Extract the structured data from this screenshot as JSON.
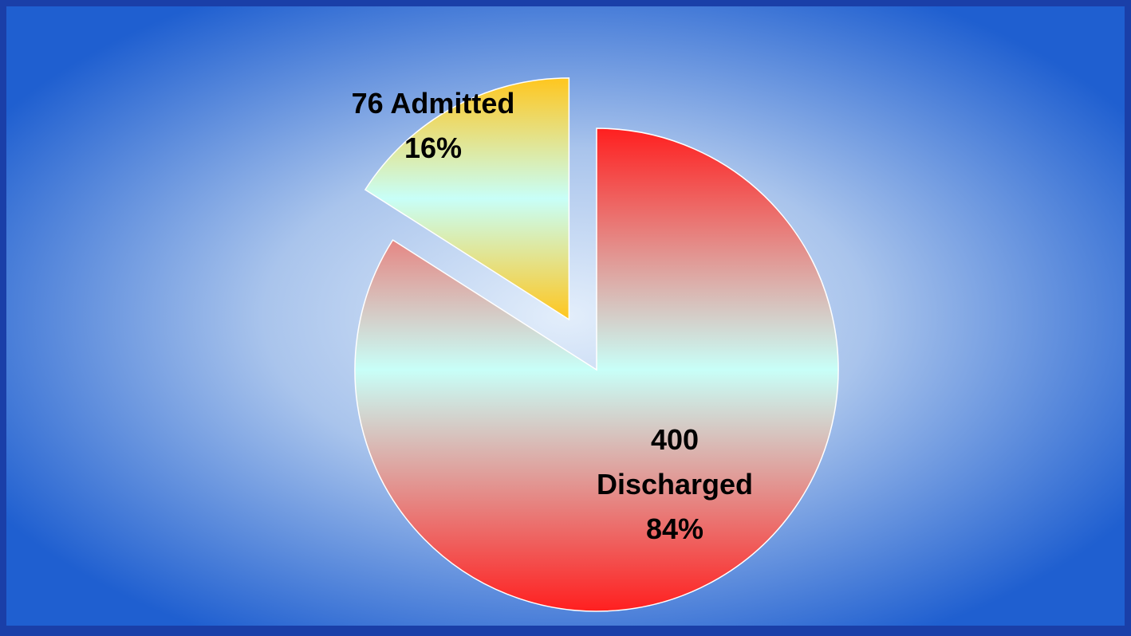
{
  "chart_data": {
    "type": "pie",
    "title": "",
    "slices": [
      {
        "count": "76",
        "label": "Admitted",
        "percent_label": "16%",
        "value": 76,
        "percent": 16,
        "exploded": true,
        "color_edge": "#ffc61e",
        "color_center": "#c8fff8"
      },
      {
        "count": "400",
        "label": "Discharged",
        "percent_label": "84%",
        "value": 400,
        "percent": 84,
        "exploded": false,
        "color_edge": "#ff1f1f",
        "color_center": "#c8fff8"
      }
    ]
  },
  "colors": {
    "frame": "#1a3fa8",
    "background_edge": "#1f5fd0",
    "background_center": "#d6e6f8"
  }
}
